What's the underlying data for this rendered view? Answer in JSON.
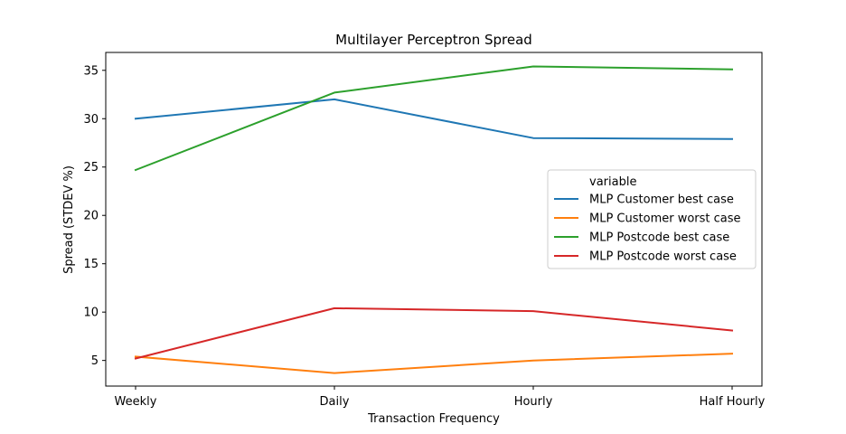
{
  "chart_data": {
    "type": "line",
    "title": "Multilayer Perceptron Spread",
    "xlabel": "Transaction Frequency",
    "ylabel": "Spread (STDEV %)",
    "categories": [
      "Weekly",
      "Daily",
      "Hourly",
      "Half Hourly"
    ],
    "ylim": [
      2.35,
      36.85
    ],
    "yticks": [
      5,
      10,
      15,
      20,
      25,
      30,
      35
    ],
    "grid": false,
    "legend": {
      "title": "variable",
      "placement": "right"
    },
    "series": [
      {
        "name": "MLP Customer best case",
        "color": "#1f77b4",
        "values": [
          30.0,
          32.0,
          28.0,
          27.9
        ]
      },
      {
        "name": "MLP Customer worst case",
        "color": "#ff7f0e",
        "values": [
          5.4,
          3.7,
          5.0,
          5.7
        ]
      },
      {
        "name": "MLP Postcode best case",
        "color": "#2ca02c",
        "values": [
          24.7,
          32.7,
          35.4,
          35.1
        ]
      },
      {
        "name": "MLP Postcode worst case",
        "color": "#d62728",
        "values": [
          5.2,
          10.4,
          10.1,
          8.1
        ]
      }
    ]
  }
}
